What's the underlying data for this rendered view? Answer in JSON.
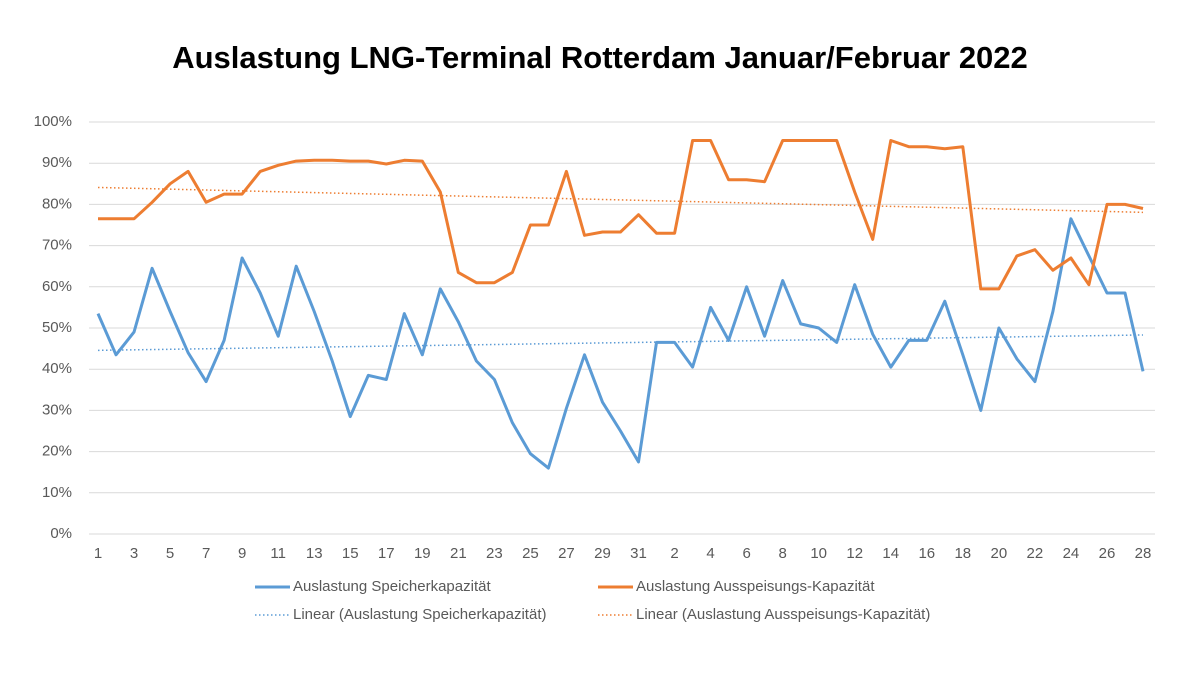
{
  "chart_data": {
    "type": "line",
    "title": "Auslastung LNG-Terminal Rotterdam Januar/Februar  2022",
    "categories": [
      "1",
      null,
      "3",
      null,
      "5",
      null,
      "7",
      null,
      "9",
      null,
      "11",
      null,
      "13",
      null,
      "15",
      null,
      "17",
      null,
      "19",
      null,
      "21",
      null,
      "23",
      null,
      "25",
      null,
      "27",
      null,
      "29",
      null,
      "31",
      null,
      "2",
      null,
      "4",
      null,
      "6",
      null,
      "8",
      null,
      "10",
      null,
      "12",
      null,
      "14",
      null,
      "16",
      null,
      "18",
      null,
      "20",
      null,
      "22",
      null,
      "24",
      null,
      "26",
      null,
      "28"
    ],
    "series": [
      {
        "name": "Auslastung Speicherkapazität",
        "color": "#5b9bd5",
        "values": [
          53.5,
          43.5,
          49,
          64.5,
          54,
          44,
          37,
          47,
          67,
          58.5,
          48,
          65,
          54,
          42,
          28.5,
          38.5,
          37.5,
          53.5,
          43.5,
          59.5,
          51.5,
          42,
          37.5,
          27,
          19.5,
          16,
          30.5,
          43.5,
          32,
          25,
          17.5,
          46.5,
          46.5,
          40.5,
          55,
          47,
          60,
          48,
          61.5,
          51,
          50,
          46.5,
          60.5,
          48.5,
          40.5,
          47,
          47,
          56.5,
          43.5,
          30,
          50,
          42.5,
          37,
          54,
          76.5,
          67.5,
          58.5,
          58.5,
          39.5
        ]
      },
      {
        "name": "Auslastung Ausspeisungs-Kapazität",
        "color": "#ed7d31",
        "values": [
          76.5,
          76.5,
          76.5,
          80.5,
          85,
          88,
          80.5,
          82.5,
          82.5,
          88,
          89.5,
          90.5,
          90.7,
          90.7,
          90.5,
          90.5,
          89.8,
          90.7,
          90.5,
          83,
          63.5,
          61,
          61,
          63.5,
          75,
          75,
          88,
          72.5,
          73.3,
          73.3,
          77.5,
          73,
          73,
          95.5,
          95.5,
          86,
          86,
          85.5,
          95.5,
          95.5,
          95.5,
          95.5,
          83,
          71.5,
          95.5,
          94,
          94,
          93.5,
          94,
          59.5,
          59.5,
          67.5,
          69,
          64,
          67,
          60.5,
          80,
          80,
          79
        ]
      }
    ],
    "trendlines": [
      {
        "name": "Linear (Auslastung Speicherkapazität)",
        "series": 0
      },
      {
        "name": "Linear (Auslastung Ausspeisungs-Kapazität)",
        "series": 1
      }
    ],
    "ylim": [
      0,
      100
    ],
    "yticks": [
      {
        "value": 0,
        "label": "0%"
      },
      {
        "value": 10,
        "label": "10%"
      },
      {
        "value": 20,
        "label": "20%"
      },
      {
        "value": 30,
        "label": "30%"
      },
      {
        "value": 40,
        "label": "40%"
      },
      {
        "value": 50,
        "label": "50%"
      },
      {
        "value": 60,
        "label": "60%"
      },
      {
        "value": 70,
        "label": "70%"
      },
      {
        "value": 80,
        "label": "80%"
      },
      {
        "value": 90,
        "label": "90%"
      },
      {
        "value": 100,
        "label": "100%"
      }
    ],
    "grid": true,
    "legend": "bottom"
  }
}
